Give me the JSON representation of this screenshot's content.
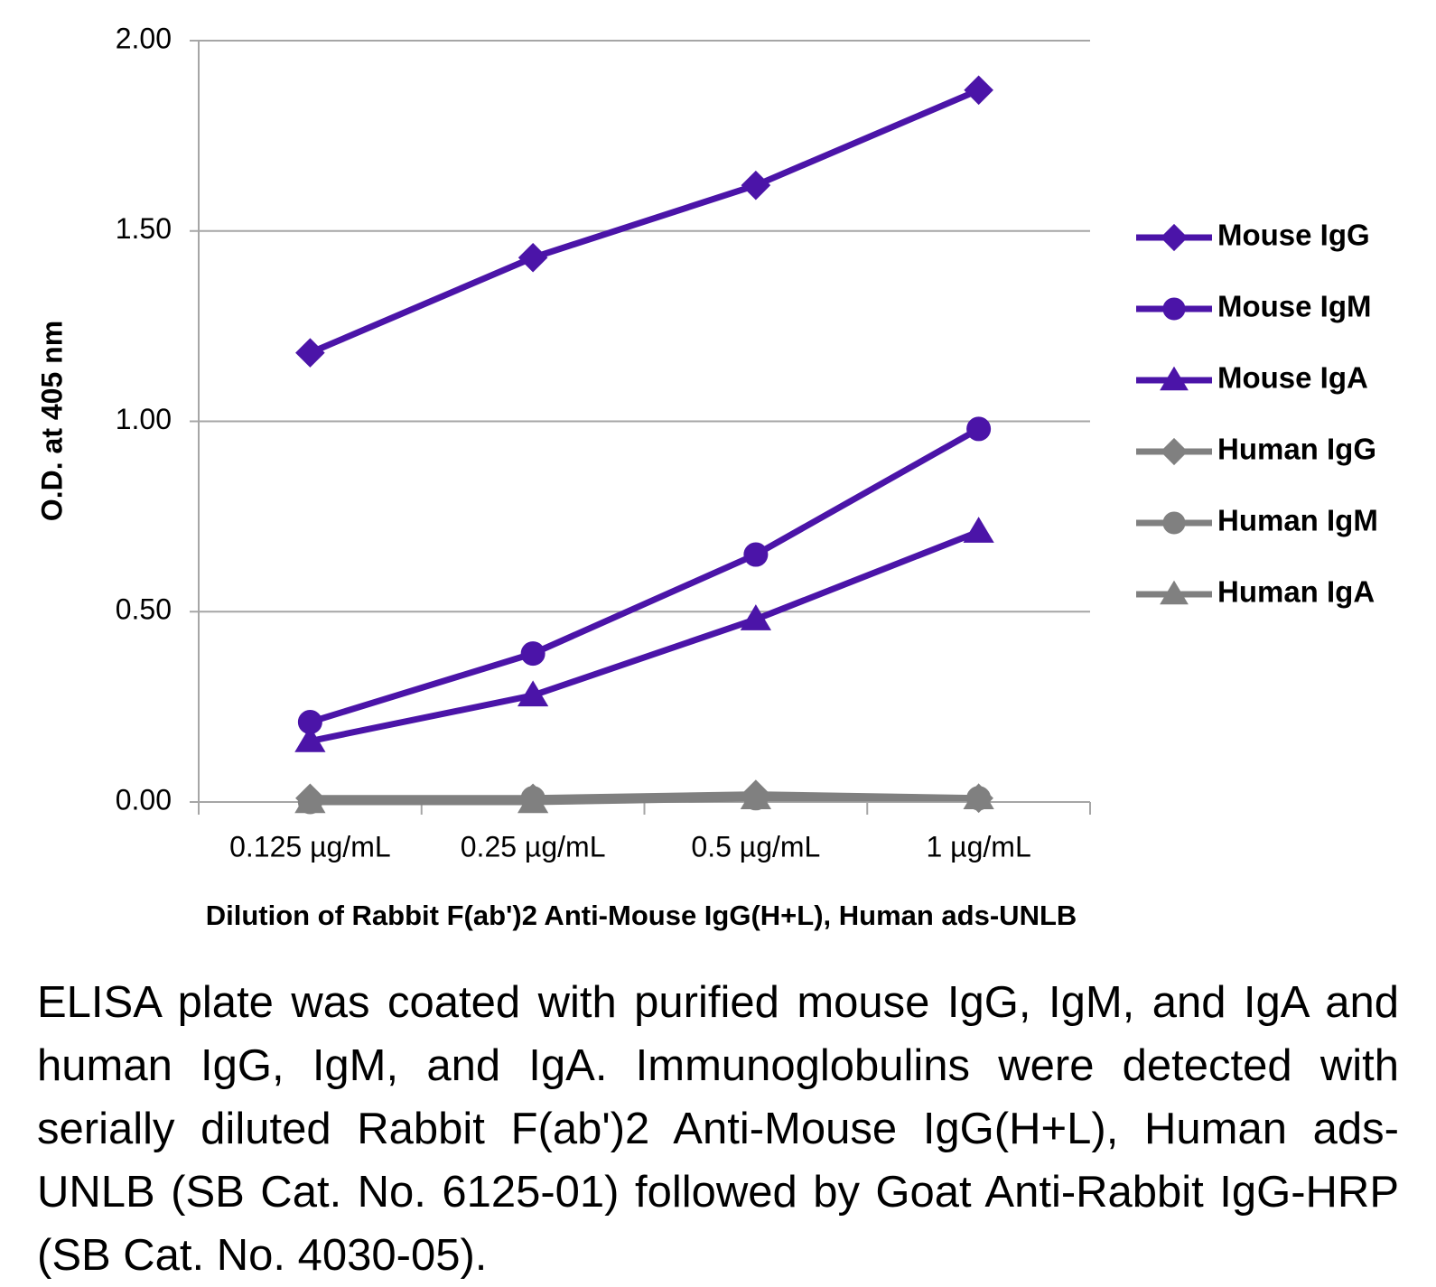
{
  "chart_data": {
    "type": "line",
    "ylabel": "O.D. at 405 nm",
    "xlabel": "Dilution of Rabbit F(ab')2 Anti-Mouse IgG(H+L), Human ads-UNLB",
    "categories": [
      "0.125 µg/mL",
      "0.25 µg/mL",
      "0.5 µg/mL",
      "1 µg/mL"
    ],
    "series": [
      {
        "name": "Mouse IgG",
        "color": "#4b14a8",
        "marker": "diamond",
        "values": [
          1.18,
          1.43,
          1.62,
          1.87
        ]
      },
      {
        "name": "Mouse IgM",
        "color": "#4b14a8",
        "marker": "circle",
        "values": [
          0.21,
          0.39,
          0.65,
          0.98
        ]
      },
      {
        "name": "Mouse IgA",
        "color": "#4b14a8",
        "marker": "triangle",
        "values": [
          0.16,
          0.28,
          0.48,
          0.71
        ]
      },
      {
        "name": "Human IgG",
        "color": "#808080",
        "marker": "diamond",
        "values": [
          0.01,
          0.01,
          0.02,
          0.01
        ]
      },
      {
        "name": "Human IgM",
        "color": "#808080",
        "marker": "circle",
        "values": [
          0.0,
          0.01,
          0.01,
          0.01
        ]
      },
      {
        "name": "Human IgA",
        "color": "#808080",
        "marker": "triangle",
        "values": [
          0.0,
          0.0,
          0.01,
          0.01
        ]
      }
    ],
    "ylim": [
      0,
      2
    ],
    "yticks": [
      {
        "value": 0,
        "label": "0.00"
      },
      {
        "value": 0.5,
        "label": "0.50"
      },
      {
        "value": 1,
        "label": "1.00"
      },
      {
        "value": 1.5,
        "label": "1.50"
      },
      {
        "value": 2,
        "label": "2.00"
      }
    ],
    "grid": true,
    "legend": "right"
  },
  "caption": "ELISA plate was coated with purified mouse IgG, IgM, and IgA and human IgG, IgM, and IgA.  Immunoglobulins were detected with serially diluted Rabbit F(ab')2 Anti-Mouse IgG(H+L), Human ads-UNLB (SB Cat. No. 6125-01) followed by Goat Anti-Rabbit IgG-HRP (SB Cat. No. 4030-05)."
}
